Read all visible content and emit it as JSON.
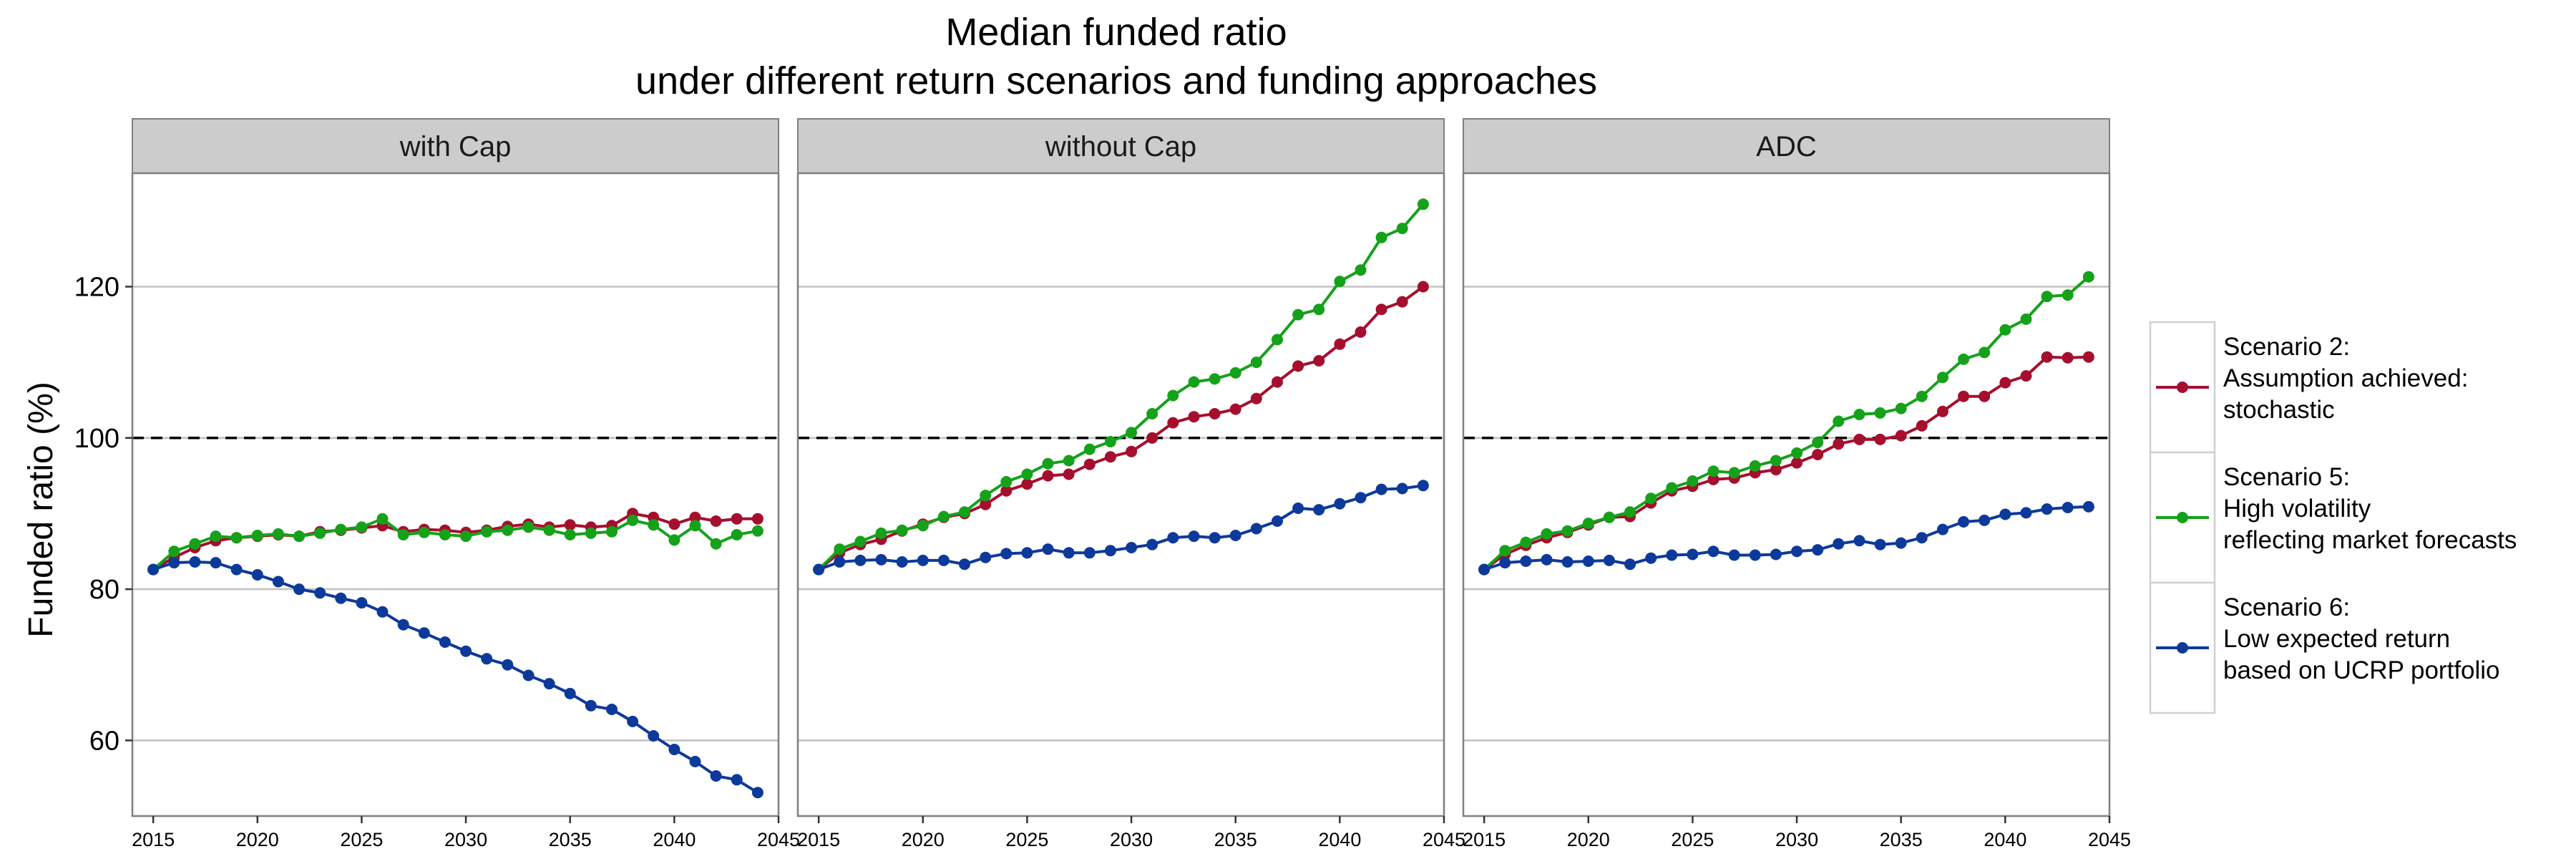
{
  "chart_data": {
    "type": "line",
    "title": [
      "Median funded ratio",
      "under different return scenarios and funding approaches"
    ],
    "xlabel": "",
    "ylabel": "Funded ratio (%)",
    "xlim": [
      2014,
      2045
    ],
    "ylim": [
      50,
      135
    ],
    "x_ticks": [
      2015,
      2020,
      2025,
      2030,
      2035,
      2040,
      2045
    ],
    "y_ticks": [
      60,
      80,
      100,
      120
    ],
    "reference_line": {
      "y": 100,
      "style": "dashed",
      "color": "#000000"
    },
    "grid": "horizontal",
    "legend_position": "right",
    "colors": {
      "scenario2": "#a50f2d",
      "scenario5": "#15a11a",
      "scenario6": "#0d3a9a",
      "strip": "#cccccc",
      "grid": "#c0c0c0"
    },
    "legend": [
      {
        "key": "scenario2",
        "lines": [
          "Scenario 2:",
          "Assumption achieved:",
          "stochastic"
        ]
      },
      {
        "key": "scenario5",
        "lines": [
          "Scenario 5:",
          "High volatility",
          "reflecting market forecasts"
        ]
      },
      {
        "key": "scenario6",
        "lines": [
          "Scenario 6:",
          "Low expected return",
          "based on UCRP portfolio"
        ]
      }
    ],
    "panels": [
      {
        "label": "with Cap",
        "series": [
          {
            "key": "scenario2",
            "x": [
              2015,
              2016,
              2017,
              2018,
              2019,
              2020,
              2021,
              2022,
              2023,
              2024,
              2025,
              2026,
              2027,
              2028,
              2029,
              2030,
              2031,
              2032,
              2033,
              2034,
              2035,
              2036,
              2037,
              2038,
              2039,
              2040,
              2041,
              2042,
              2043,
              2044
            ],
            "values": [
              82.6,
              84.2,
              85.5,
              86.4,
              86.8,
              87.0,
              87.2,
              87.0,
              87.6,
              87.8,
              88.1,
              88.4,
              87.6,
              87.9,
              87.8,
              87.5,
              87.8,
              88.3,
              88.6,
              88.2,
              88.5,
              88.2,
              88.4,
              90.0,
              89.5,
              88.6,
              89.5,
              89.0,
              89.3,
              89.3
            ]
          },
          {
            "key": "scenario5",
            "x": [
              2015,
              2016,
              2017,
              2018,
              2019,
              2020,
              2021,
              2022,
              2023,
              2024,
              2025,
              2026,
              2027,
              2028,
              2029,
              2030,
              2031,
              2032,
              2033,
              2034,
              2035,
              2036,
              2037,
              2038,
              2039,
              2040,
              2041,
              2042,
              2043,
              2044
            ],
            "values": [
              82.6,
              85.0,
              86.0,
              87.0,
              86.8,
              87.1,
              87.3,
              87.0,
              87.4,
              87.9,
              88.2,
              89.3,
              87.2,
              87.5,
              87.2,
              87.0,
              87.6,
              87.8,
              88.2,
              87.8,
              87.2,
              87.4,
              87.6,
              89.1,
              88.5,
              86.5,
              88.4,
              86.0,
              87.2,
              87.7
            ]
          },
          {
            "key": "scenario6",
            "x": [
              2015,
              2016,
              2017,
              2018,
              2019,
              2020,
              2021,
              2022,
              2023,
              2024,
              2025,
              2026,
              2027,
              2028,
              2029,
              2030,
              2031,
              2032,
              2033,
              2034,
              2035,
              2036,
              2037,
              2038,
              2039,
              2040,
              2041,
              2042,
              2043,
              2044
            ],
            "values": [
              82.6,
              83.5,
              83.6,
              83.5,
              82.6,
              81.9,
              81.0,
              80.0,
              79.5,
              78.8,
              78.2,
              77.0,
              75.3,
              74.2,
              73.0,
              71.8,
              70.8,
              70.0,
              68.6,
              67.5,
              66.2,
              64.6,
              64.1,
              62.5,
              60.6,
              58.8,
              57.2,
              55.3,
              54.8,
              53.1
            ]
          }
        ]
      },
      {
        "label": "without Cap",
        "series": [
          {
            "key": "scenario2",
            "x": [
              2015,
              2016,
              2017,
              2018,
              2019,
              2020,
              2021,
              2022,
              2023,
              2024,
              2025,
              2026,
              2027,
              2028,
              2029,
              2030,
              2031,
              2032,
              2033,
              2034,
              2035,
              2036,
              2037,
              2038,
              2039,
              2040,
              2041,
              2042,
              2043,
              2044
            ],
            "values": [
              82.6,
              84.8,
              85.9,
              86.6,
              87.7,
              88.6,
              89.5,
              90.0,
              91.2,
              93.0,
              93.9,
              95.0,
              95.2,
              96.5,
              97.5,
              98.2,
              100.0,
              102.0,
              102.8,
              103.2,
              103.8,
              105.2,
              107.4,
              109.5,
              110.2,
              112.4,
              114.0,
              117.0,
              118.0,
              120.0
            ]
          },
          {
            "key": "scenario5",
            "x": [
              2015,
              2016,
              2017,
              2018,
              2019,
              2020,
              2021,
              2022,
              2023,
              2024,
              2025,
              2026,
              2027,
              2028,
              2029,
              2030,
              2031,
              2032,
              2033,
              2034,
              2035,
              2036,
              2037,
              2038,
              2039,
              2040,
              2041,
              2042,
              2043,
              2044
            ],
            "values": [
              82.6,
              85.3,
              86.3,
              87.4,
              87.8,
              88.4,
              89.6,
              90.2,
              92.4,
              94.2,
              95.2,
              96.6,
              97.0,
              98.5,
              99.5,
              100.7,
              103.2,
              105.6,
              107.4,
              107.8,
              108.6,
              110.0,
              113.0,
              116.3,
              117.0,
              120.7,
              122.2,
              126.5,
              127.7,
              130.9
            ]
          },
          {
            "key": "scenario6",
            "x": [
              2015,
              2016,
              2017,
              2018,
              2019,
              2020,
              2021,
              2022,
              2023,
              2024,
              2025,
              2026,
              2027,
              2028,
              2029,
              2030,
              2031,
              2032,
              2033,
              2034,
              2035,
              2036,
              2037,
              2038,
              2039,
              2040,
              2041,
              2042,
              2043,
              2044
            ],
            "values": [
              82.6,
              83.6,
              83.8,
              83.9,
              83.6,
              83.8,
              83.8,
              83.3,
              84.2,
              84.7,
              84.8,
              85.3,
              84.8,
              84.8,
              85.1,
              85.5,
              85.9,
              86.8,
              87.0,
              86.8,
              87.1,
              88.0,
              89.0,
              90.7,
              90.5,
              91.3,
              92.1,
              93.2,
              93.3,
              93.7
            ]
          }
        ]
      },
      {
        "label": "ADC",
        "series": [
          {
            "key": "scenario2",
            "x": [
              2015,
              2016,
              2017,
              2018,
              2019,
              2020,
              2021,
              2022,
              2023,
              2024,
              2025,
              2026,
              2027,
              2028,
              2029,
              2030,
              2031,
              2032,
              2033,
              2034,
              2035,
              2036,
              2037,
              2038,
              2039,
              2040,
              2041,
              2042,
              2043,
              2044
            ],
            "values": [
              82.6,
              84.6,
              85.8,
              86.8,
              87.5,
              88.5,
              89.5,
              89.6,
              91.4,
              93.0,
              93.6,
              94.5,
              94.7,
              95.4,
              95.8,
              96.7,
              97.8,
              99.2,
              99.8,
              99.8,
              100.3,
              101.6,
              103.5,
              105.5,
              105.5,
              107.3,
              108.2,
              110.7,
              110.6,
              110.7
            ]
          },
          {
            "key": "scenario5",
            "x": [
              2015,
              2016,
              2017,
              2018,
              2019,
              2020,
              2021,
              2022,
              2023,
              2024,
              2025,
              2026,
              2027,
              2028,
              2029,
              2030,
              2031,
              2032,
              2033,
              2034,
              2035,
              2036,
              2037,
              2038,
              2039,
              2040,
              2041,
              2042,
              2043,
              2044
            ],
            "values": [
              82.6,
              85.1,
              86.2,
              87.3,
              87.7,
              88.7,
              89.5,
              90.2,
              92.0,
              93.4,
              94.3,
              95.6,
              95.4,
              96.3,
              97.0,
              98.0,
              99.4,
              102.2,
              103.1,
              103.3,
              103.9,
              105.5,
              108.0,
              110.4,
              111.3,
              114.3,
              115.7,
              118.7,
              118.9,
              121.3
            ]
          },
          {
            "key": "scenario6",
            "x": [
              2015,
              2016,
              2017,
              2018,
              2019,
              2020,
              2021,
              2022,
              2023,
              2024,
              2025,
              2026,
              2027,
              2028,
              2029,
              2030,
              2031,
              2032,
              2033,
              2034,
              2035,
              2036,
              2037,
              2038,
              2039,
              2040,
              2041,
              2042,
              2043,
              2044
            ],
            "values": [
              82.6,
              83.5,
              83.7,
              83.9,
              83.6,
              83.7,
              83.8,
              83.3,
              84.1,
              84.5,
              84.6,
              85.0,
              84.5,
              84.5,
              84.6,
              85.0,
              85.2,
              86.0,
              86.4,
              85.9,
              86.1,
              86.8,
              87.9,
              88.9,
              89.1,
              89.9,
              90.1,
              90.6,
              90.8,
              90.9
            ]
          }
        ]
      }
    ]
  }
}
